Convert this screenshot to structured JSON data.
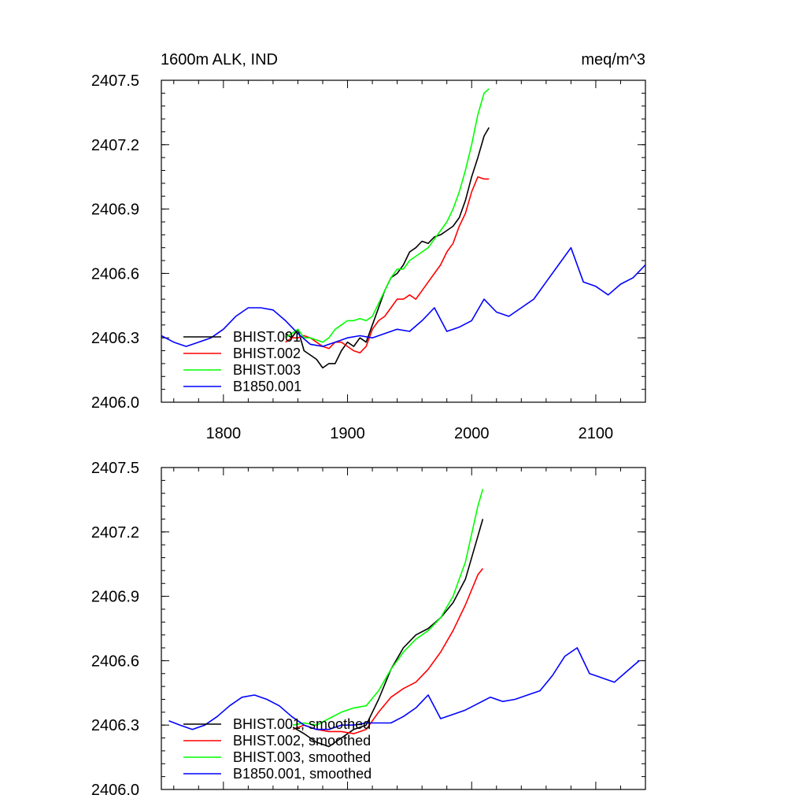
{
  "chart_data": [
    {
      "type": "line",
      "title": "1600m ALK, IND",
      "units": "meq/m^3",
      "xlim": [
        1750,
        2140
      ],
      "ylim": [
        2406.0,
        2407.5
      ],
      "yticks": [
        "2406.0",
        "2406.3",
        "2406.6",
        "2406.9",
        "2407.2",
        "2407.5"
      ],
      "xticks": [
        "1800",
        "1900",
        "2000",
        "2100"
      ],
      "grid": false,
      "legend_position": "lower-left",
      "series": [
        {
          "name": "BHIST.001",
          "color": "#000000",
          "x": [
            1850,
            1855,
            1860,
            1865,
            1870,
            1875,
            1880,
            1885,
            1890,
            1895,
            1900,
            1905,
            1910,
            1915,
            1920,
            1925,
            1930,
            1935,
            1940,
            1945,
            1950,
            1955,
            1960,
            1965,
            1970,
            1975,
            1980,
            1985,
            1990,
            1995,
            2000,
            2005,
            2010,
            2014
          ],
          "y": [
            2406.32,
            2406.3,
            2406.34,
            2406.24,
            2406.22,
            2406.2,
            2406.16,
            2406.18,
            2406.18,
            2406.24,
            2406.28,
            2406.26,
            2406.3,
            2406.28,
            2406.36,
            2406.44,
            2406.52,
            2406.58,
            2406.6,
            2406.64,
            2406.7,
            2406.72,
            2406.75,
            2406.74,
            2406.77,
            2406.78,
            2406.8,
            2406.82,
            2406.86,
            2406.94,
            2407.05,
            2407.14,
            2407.24,
            2407.28
          ]
        },
        {
          "name": "BHIST.002",
          "color": "#ff0000",
          "x": [
            1850,
            1855,
            1860,
            1865,
            1870,
            1875,
            1880,
            1885,
            1890,
            1895,
            1900,
            1905,
            1910,
            1915,
            1920,
            1925,
            1930,
            1935,
            1940,
            1945,
            1950,
            1955,
            1960,
            1965,
            1970,
            1975,
            1980,
            1985,
            1990,
            1995,
            2000,
            2005,
            2010,
            2014
          ],
          "y": [
            2406.28,
            2406.3,
            2406.3,
            2406.31,
            2406.3,
            2406.28,
            2406.26,
            2406.25,
            2406.28,
            2406.28,
            2406.26,
            2406.24,
            2406.23,
            2406.26,
            2406.34,
            2406.38,
            2406.4,
            2406.44,
            2406.48,
            2406.48,
            2406.5,
            2406.48,
            2406.52,
            2406.56,
            2406.6,
            2406.64,
            2406.7,
            2406.74,
            2406.82,
            2406.88,
            2406.98,
            2407.05,
            2407.04,
            2407.04
          ]
        },
        {
          "name": "BHIST.003",
          "color": "#00ff00",
          "x": [
            1850,
            1855,
            1860,
            1865,
            1870,
            1875,
            1880,
            1885,
            1890,
            1895,
            1900,
            1905,
            1910,
            1915,
            1920,
            1925,
            1930,
            1935,
            1940,
            1945,
            1950,
            1955,
            1960,
            1965,
            1970,
            1975,
            1980,
            1985,
            1990,
            1995,
            2000,
            2005,
            2010,
            2014
          ],
          "y": [
            2406.3,
            2406.32,
            2406.34,
            2406.3,
            2406.3,
            2406.29,
            2406.28,
            2406.3,
            2406.34,
            2406.36,
            2406.38,
            2406.38,
            2406.39,
            2406.38,
            2406.4,
            2406.46,
            2406.52,
            2406.58,
            2406.62,
            2406.62,
            2406.66,
            2406.68,
            2406.7,
            2406.72,
            2406.76,
            2406.8,
            2406.84,
            2406.9,
            2406.98,
            2407.08,
            2407.2,
            2407.34,
            2407.44,
            2407.46
          ]
        },
        {
          "name": "B1850.001",
          "color": "#0000ff",
          "x": [
            1750,
            1760,
            1770,
            1780,
            1790,
            1800,
            1810,
            1820,
            1830,
            1840,
            1850,
            1860,
            1870,
            1880,
            1890,
            1900,
            1910,
            1920,
            1930,
            1940,
            1950,
            1960,
            1970,
            1980,
            1990,
            2000,
            2010,
            2020,
            2030,
            2040,
            2050,
            2060,
            2070,
            2080,
            2090,
            2100,
            2110,
            2120,
            2130,
            2140
          ],
          "y": [
            2406.31,
            2406.28,
            2406.26,
            2406.28,
            2406.3,
            2406.34,
            2406.4,
            2406.44,
            2406.44,
            2406.43,
            2406.38,
            2406.32,
            2406.27,
            2406.26,
            2406.28,
            2406.3,
            2406.31,
            2406.3,
            2406.32,
            2406.34,
            2406.33,
            2406.38,
            2406.44,
            2406.33,
            2406.35,
            2406.38,
            2406.48,
            2406.42,
            2406.4,
            2406.44,
            2406.48,
            2406.56,
            2406.64,
            2406.72,
            2406.56,
            2406.54,
            2406.5,
            2406.55,
            2406.58,
            2406.64
          ]
        }
      ]
    },
    {
      "type": "line",
      "xlim": [
        1750,
        2140
      ],
      "ylim": [
        2406.0,
        2407.5
      ],
      "yticks": [
        "2406.0",
        "2406.3",
        "2406.6",
        "2406.9",
        "2407.2",
        "2407.5"
      ],
      "grid": false,
      "legend_position": "lower-left",
      "series": [
        {
          "name": "BHIST.001, smoothed",
          "color": "#000000",
          "x": [
            1856,
            1865,
            1875,
            1885,
            1895,
            1905,
            1915,
            1925,
            1935,
            1945,
            1955,
            1965,
            1975,
            1985,
            1995,
            2005,
            2009
          ],
          "y": [
            2406.29,
            2406.26,
            2406.22,
            2406.2,
            2406.24,
            2406.28,
            2406.3,
            2406.42,
            2406.56,
            2406.66,
            2406.72,
            2406.75,
            2406.8,
            2406.87,
            2406.98,
            2407.18,
            2407.26
          ]
        },
        {
          "name": "BHIST.002, smoothed",
          "color": "#ff0000",
          "x": [
            1856,
            1865,
            1875,
            1885,
            1895,
            1905,
            1915,
            1925,
            1935,
            1945,
            1955,
            1965,
            1975,
            1985,
            1995,
            2005,
            2009
          ],
          "y": [
            2406.28,
            2406.3,
            2406.28,
            2406.27,
            2406.27,
            2406.26,
            2406.28,
            2406.36,
            2406.43,
            2406.47,
            2406.5,
            2406.56,
            2406.64,
            2406.74,
            2406.86,
            2407.0,
            2407.03
          ]
        },
        {
          "name": "BHIST.003, smoothed",
          "color": "#00ff00",
          "x": [
            1856,
            1865,
            1875,
            1885,
            1895,
            1905,
            1915,
            1925,
            1935,
            1945,
            1955,
            1965,
            1975,
            1985,
            1995,
            2005,
            2009
          ],
          "y": [
            2406.3,
            2406.31,
            2406.3,
            2406.33,
            2406.36,
            2406.38,
            2406.39,
            2406.46,
            2406.56,
            2406.64,
            2406.7,
            2406.74,
            2406.8,
            2406.9,
            2407.06,
            2407.32,
            2407.4
          ]
        },
        {
          "name": "B1850.001, smoothed",
          "color": "#0000ff",
          "x": [
            1756,
            1765,
            1775,
            1785,
            1795,
            1805,
            1815,
            1825,
            1835,
            1845,
            1855,
            1865,
            1875,
            1885,
            1895,
            1905,
            1915,
            1925,
            1935,
            1945,
            1955,
            1965,
            1975,
            1985,
            1995,
            2005,
            2015,
            2025,
            2035,
            2045,
            2055,
            2065,
            2075,
            2085,
            2095,
            2105,
            2115,
            2125,
            2135
          ],
          "y": [
            2406.32,
            2406.3,
            2406.28,
            2406.3,
            2406.34,
            2406.39,
            2406.43,
            2406.44,
            2406.42,
            2406.39,
            2406.34,
            2406.3,
            2406.28,
            2406.28,
            2406.3,
            2406.3,
            2406.31,
            2406.31,
            2406.31,
            2406.34,
            2406.38,
            2406.44,
            2406.33,
            2406.35,
            2406.37,
            2406.4,
            2406.43,
            2406.41,
            2406.42,
            2406.44,
            2406.46,
            2406.53,
            2406.62,
            2406.66,
            2406.54,
            2406.52,
            2406.5,
            2406.55,
            2406.6
          ]
        }
      ]
    }
  ]
}
